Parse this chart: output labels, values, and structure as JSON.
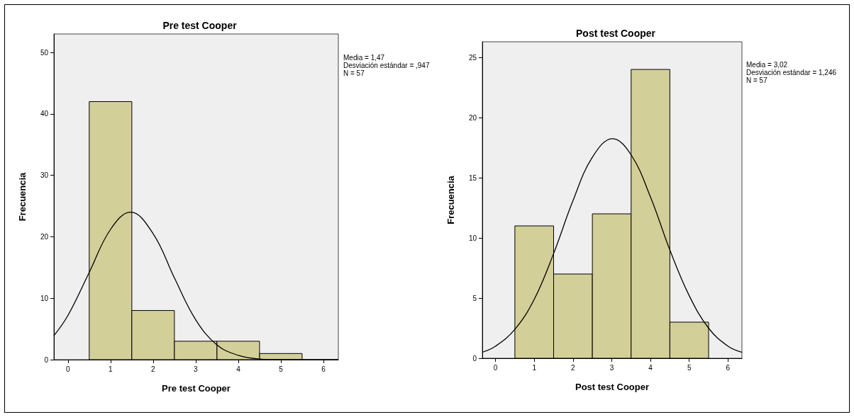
{
  "chart_data": [
    {
      "type": "histogram",
      "title": "Pre test Cooper",
      "xlabel": "Pre test Cooper",
      "ylabel": "Frecuencia",
      "bins": [
        0.5,
        1.5,
        2.5,
        3.5,
        4.5,
        5.5
      ],
      "series": [
        {
          "type": "histogram",
          "color": "#d3cf98",
          "values": [
            42,
            8,
            3,
            3,
            1
          ]
        },
        {
          "type": "line",
          "color": "#000000",
          "marker": "none",
          "x": [
            -0.33,
            0,
            0.5,
            1,
            1.47,
            2,
            2.5,
            3,
            3.5,
            4,
            4.5,
            5,
            5.5,
            6,
            6.35
          ],
          "values": [
            3.9,
            7.2,
            14.2,
            21.2,
            24,
            20.5,
            13.3,
            6.5,
            2.4,
            0.7,
            0.1,
            0,
            0,
            0,
            0
          ]
        }
      ],
      "xlim": [
        -0.33,
        6.35
      ],
      "xticks": [
        0,
        1,
        2,
        3,
        4,
        5,
        6
      ],
      "ylim": [
        0,
        53
      ],
      "yticks": [
        0,
        10,
        20,
        30,
        40,
        50
      ],
      "annotations": [
        "Media = 1,47",
        "Desviación estándar = ,947",
        "N = 57"
      ]
    },
    {
      "type": "histogram",
      "title": "Post test Cooper",
      "xlabel": "Post test Cooper",
      "ylabel": "Frecuencia",
      "bins": [
        0.5,
        1.5,
        2.5,
        3.5,
        4.5,
        5.5
      ],
      "series": [
        {
          "type": "histogram",
          "color": "#d3cf98",
          "values": [
            11,
            7,
            12,
            24,
            3
          ]
        },
        {
          "type": "line",
          "color": "#000000",
          "marker": "none",
          "x": [
            -0.34,
            0,
            0.5,
            1,
            1.5,
            2,
            2.5,
            3.02,
            3.5,
            4,
            4.5,
            5,
            5.5,
            6,
            6.36
          ],
          "values": [
            0.5,
            1,
            2.4,
            4.9,
            8.7,
            13.1,
            16.7,
            18.25,
            16.9,
            13.4,
            9,
            5.2,
            2.5,
            1,
            0.5
          ]
        }
      ],
      "xlim": [
        -0.34,
        6.36
      ],
      "xticks": [
        0,
        1,
        2,
        3,
        4,
        5,
        6
      ],
      "ylim": [
        0,
        26.3
      ],
      "yticks": [
        0,
        5,
        10,
        15,
        20,
        25
      ],
      "annotations": [
        "Media = 3,02",
        "Desviación estándar = 1,246",
        "N = 57"
      ]
    }
  ]
}
